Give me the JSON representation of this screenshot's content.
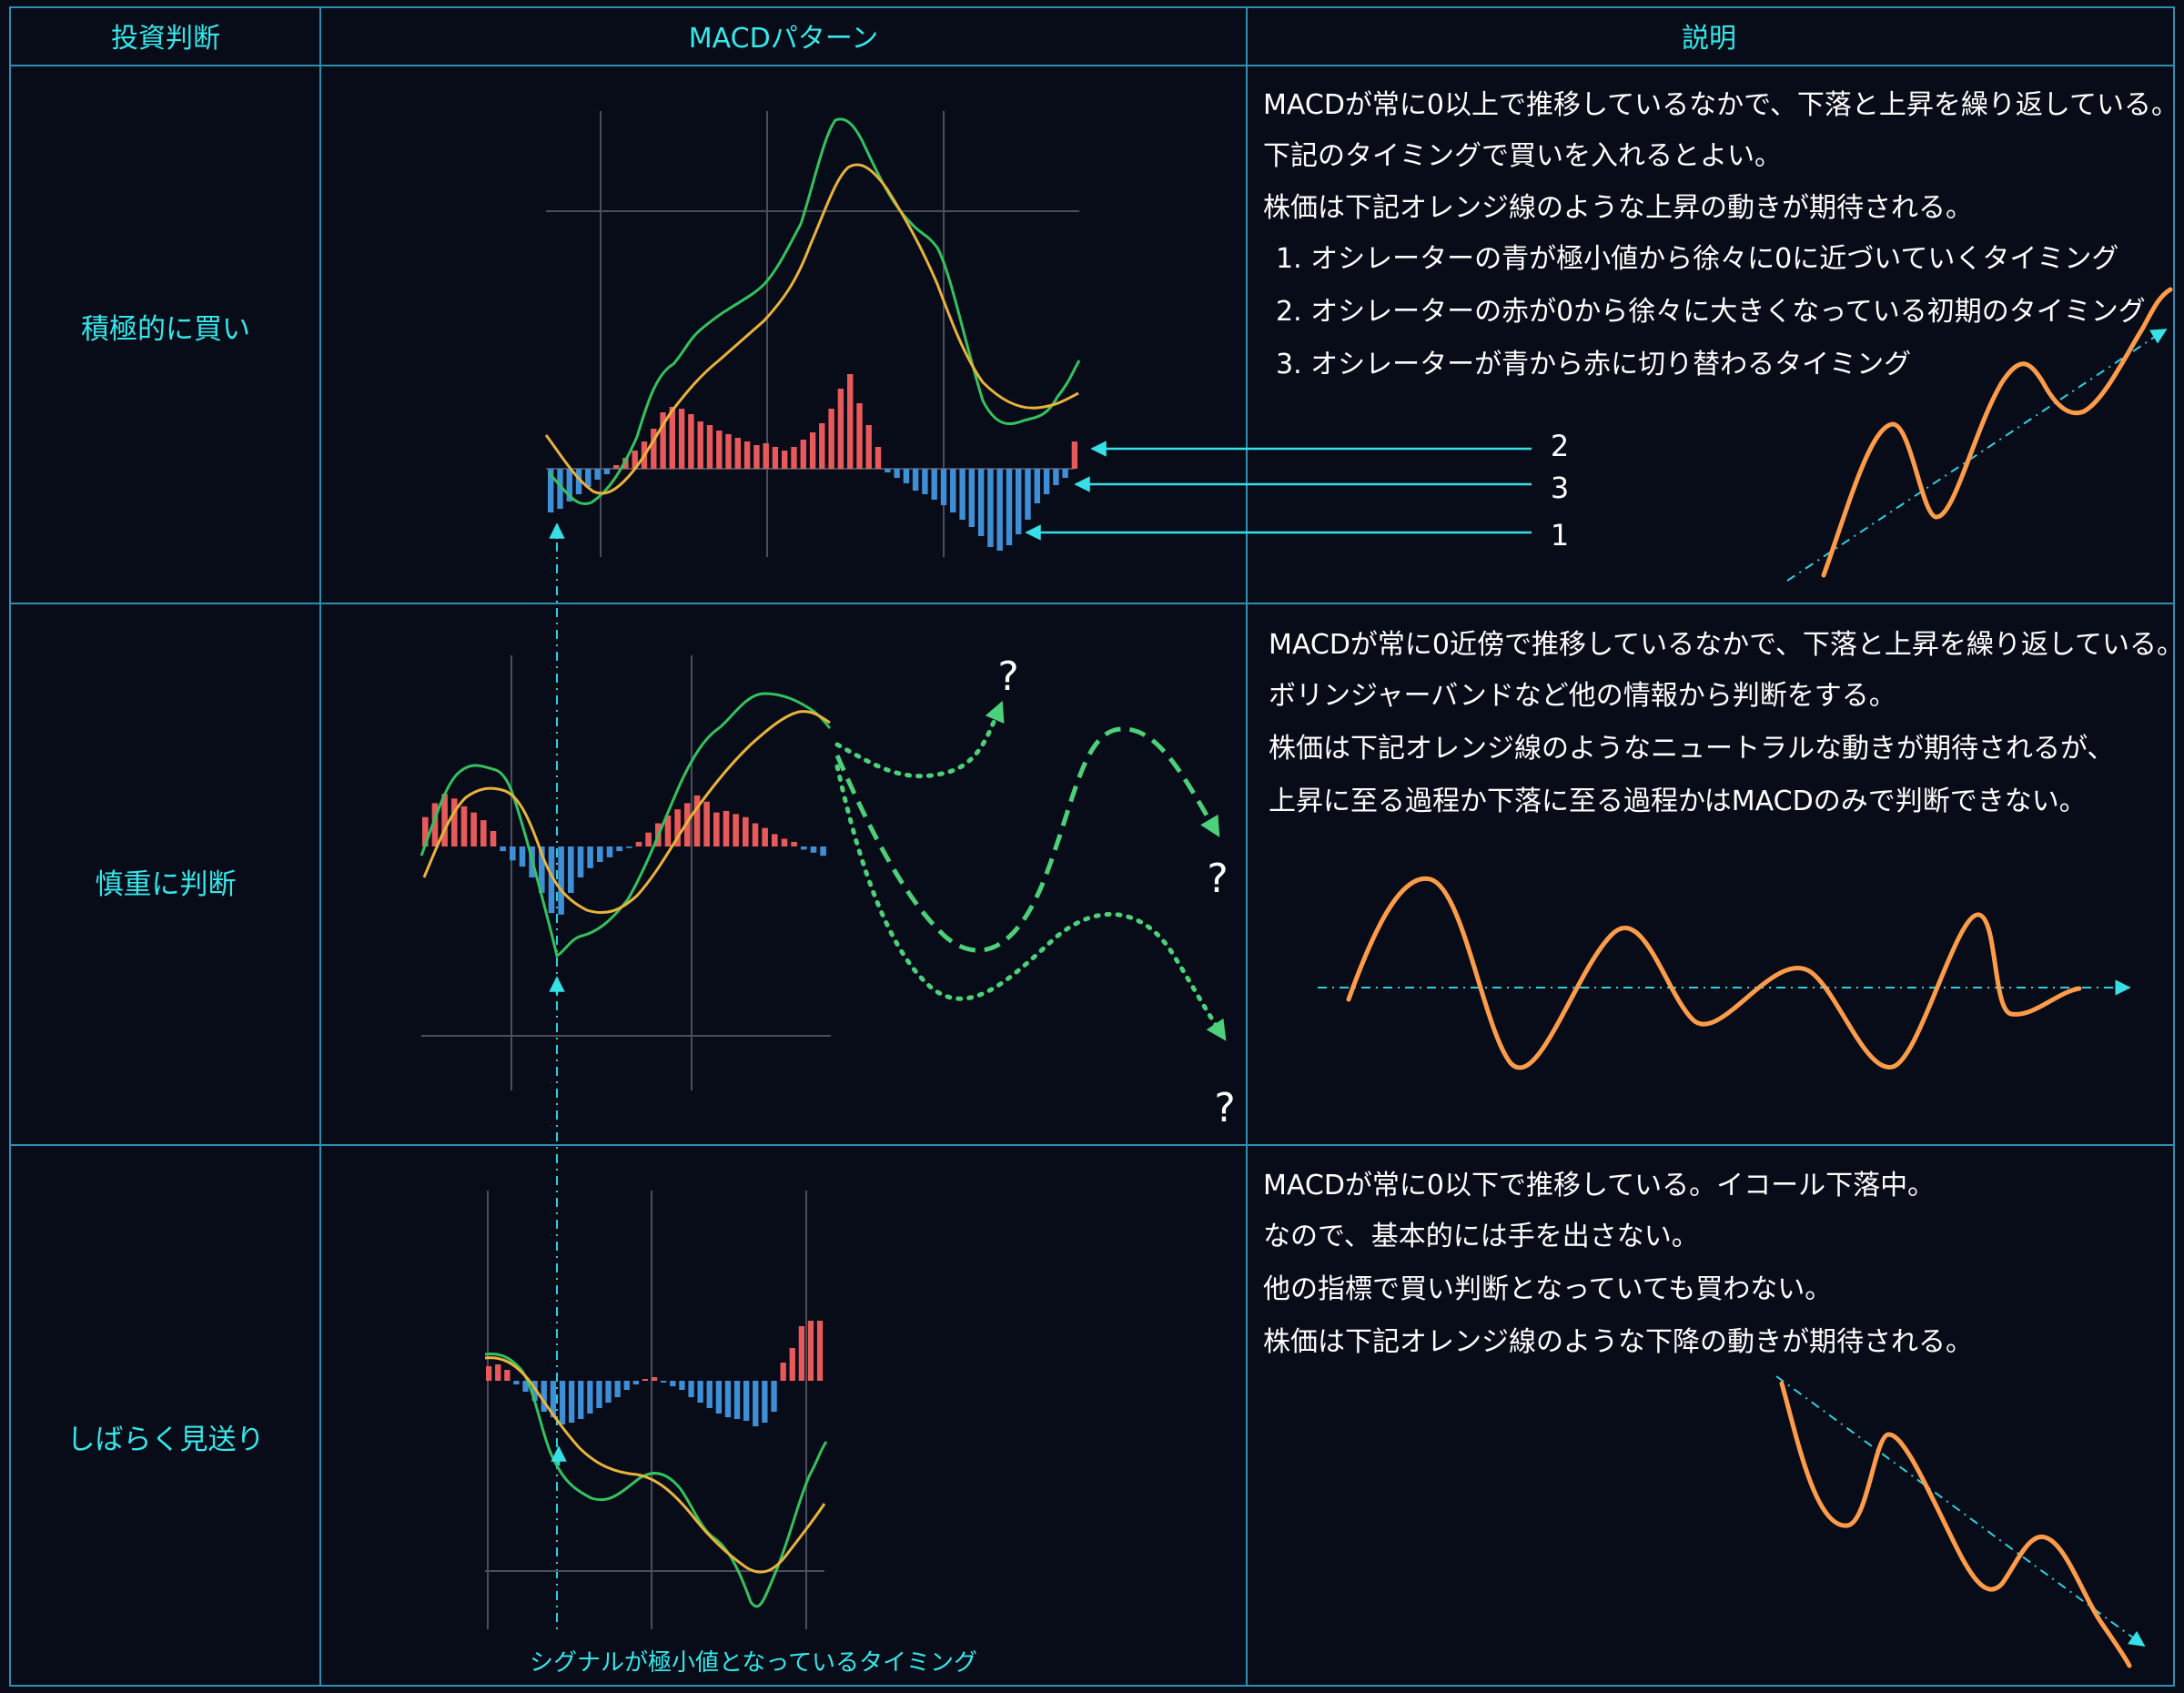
{
  "colors": {
    "background": "#080b18",
    "table_border": "#2e8fb0",
    "header_text": "#35e8ea",
    "macd_line": "#33c25e",
    "signal_line": "#e8b33c",
    "histogram_positive": "#e85a5a",
    "histogram_negative": "#3f8fd6",
    "price_line": "#ff9c4a",
    "arrow": "#35e0e6"
  },
  "header": {
    "col1": "投資判断",
    "col2": "MACDパターン",
    "col3": "説明"
  },
  "rows": [
    {
      "decision": "積極的に買い",
      "lines": [
        "MACDが常に0以上で推移しているなかで、下落と上昇を繰り返している。",
        "下記のタイミングで買いを入れるとよい。",
        "株価は下記オレンジ線のような上昇の動きが期待される。"
      ],
      "list": [
        "1. オシレーターの青が極小値から徐々に0に近づいていくタイミング",
        "2. オシレーターの赤が0から徐々に大きくなっている初期のタイミング",
        "3. オシレーターが青から赤に切り替わるタイミング"
      ],
      "markers": [
        "2",
        "3",
        "1"
      ],
      "histogram": [
        -48,
        -44,
        -36,
        -28,
        -20,
        -12,
        -6,
        4,
        12,
        20,
        30,
        44,
        62,
        68,
        66,
        60,
        52,
        48,
        42,
        38,
        34,
        30,
        26,
        28,
        24,
        20,
        24,
        32,
        40,
        50,
        66,
        88,
        104,
        72,
        48,
        24,
        -4,
        -10,
        -16,
        -24,
        -28,
        -34,
        -40,
        -48,
        -56,
        -64,
        -74,
        -86,
        -90,
        -84,
        -72,
        -56,
        -38,
        -28,
        -18,
        -10,
        30
      ],
      "trend": "up"
    },
    {
      "decision": "慎重に判断",
      "lines": [
        "MACDが常に0近傍で推移しているなかで、下落と上昇を繰り返している。",
        "ボリンジャーバンドなど他の情報から判断をする。",
        "株価は下記オレンジ線のようなニュートラルな動きが期待されるが、",
        "上昇に至る過程か下落に至る過程かはMACDのみで判断できない。"
      ],
      "question_marks": [
        "?",
        "?",
        "?"
      ],
      "histogram": [
        38,
        56,
        68,
        62,
        52,
        44,
        34,
        20,
        -6,
        -18,
        -26,
        -40,
        -60,
        -86,
        -88,
        -60,
        -40,
        -28,
        -20,
        -14,
        -6,
        -2,
        6,
        18,
        30,
        40,
        48,
        56,
        66,
        58,
        44,
        46,
        42,
        38,
        30,
        24,
        16,
        10,
        6,
        -4,
        -8,
        -12
      ],
      "trend": "neutral"
    },
    {
      "decision": "しばらく見送り",
      "lines": [
        "MACDが常に0以下で推移している。イコール下落中。",
        "なので、基本的には手を出さない。",
        "他の指標で買い判断となっていても買わない。",
        "株価は下記オレンジ線のような下降の動きが期待される。"
      ],
      "histogram": [
        16,
        18,
        12,
        -4,
        -12,
        -22,
        -34,
        -40,
        -48,
        -46,
        -42,
        -36,
        -30,
        -24,
        -18,
        -10,
        -4,
        2,
        4,
        -2,
        -6,
        -10,
        -18,
        -24,
        -30,
        -36,
        -40,
        -42,
        -44,
        -50,
        -46,
        -34,
        20,
        36,
        60,
        66,
        66
      ],
      "trend": "down"
    }
  ],
  "footnote": "シグナルが極小値となっているタイミング"
}
